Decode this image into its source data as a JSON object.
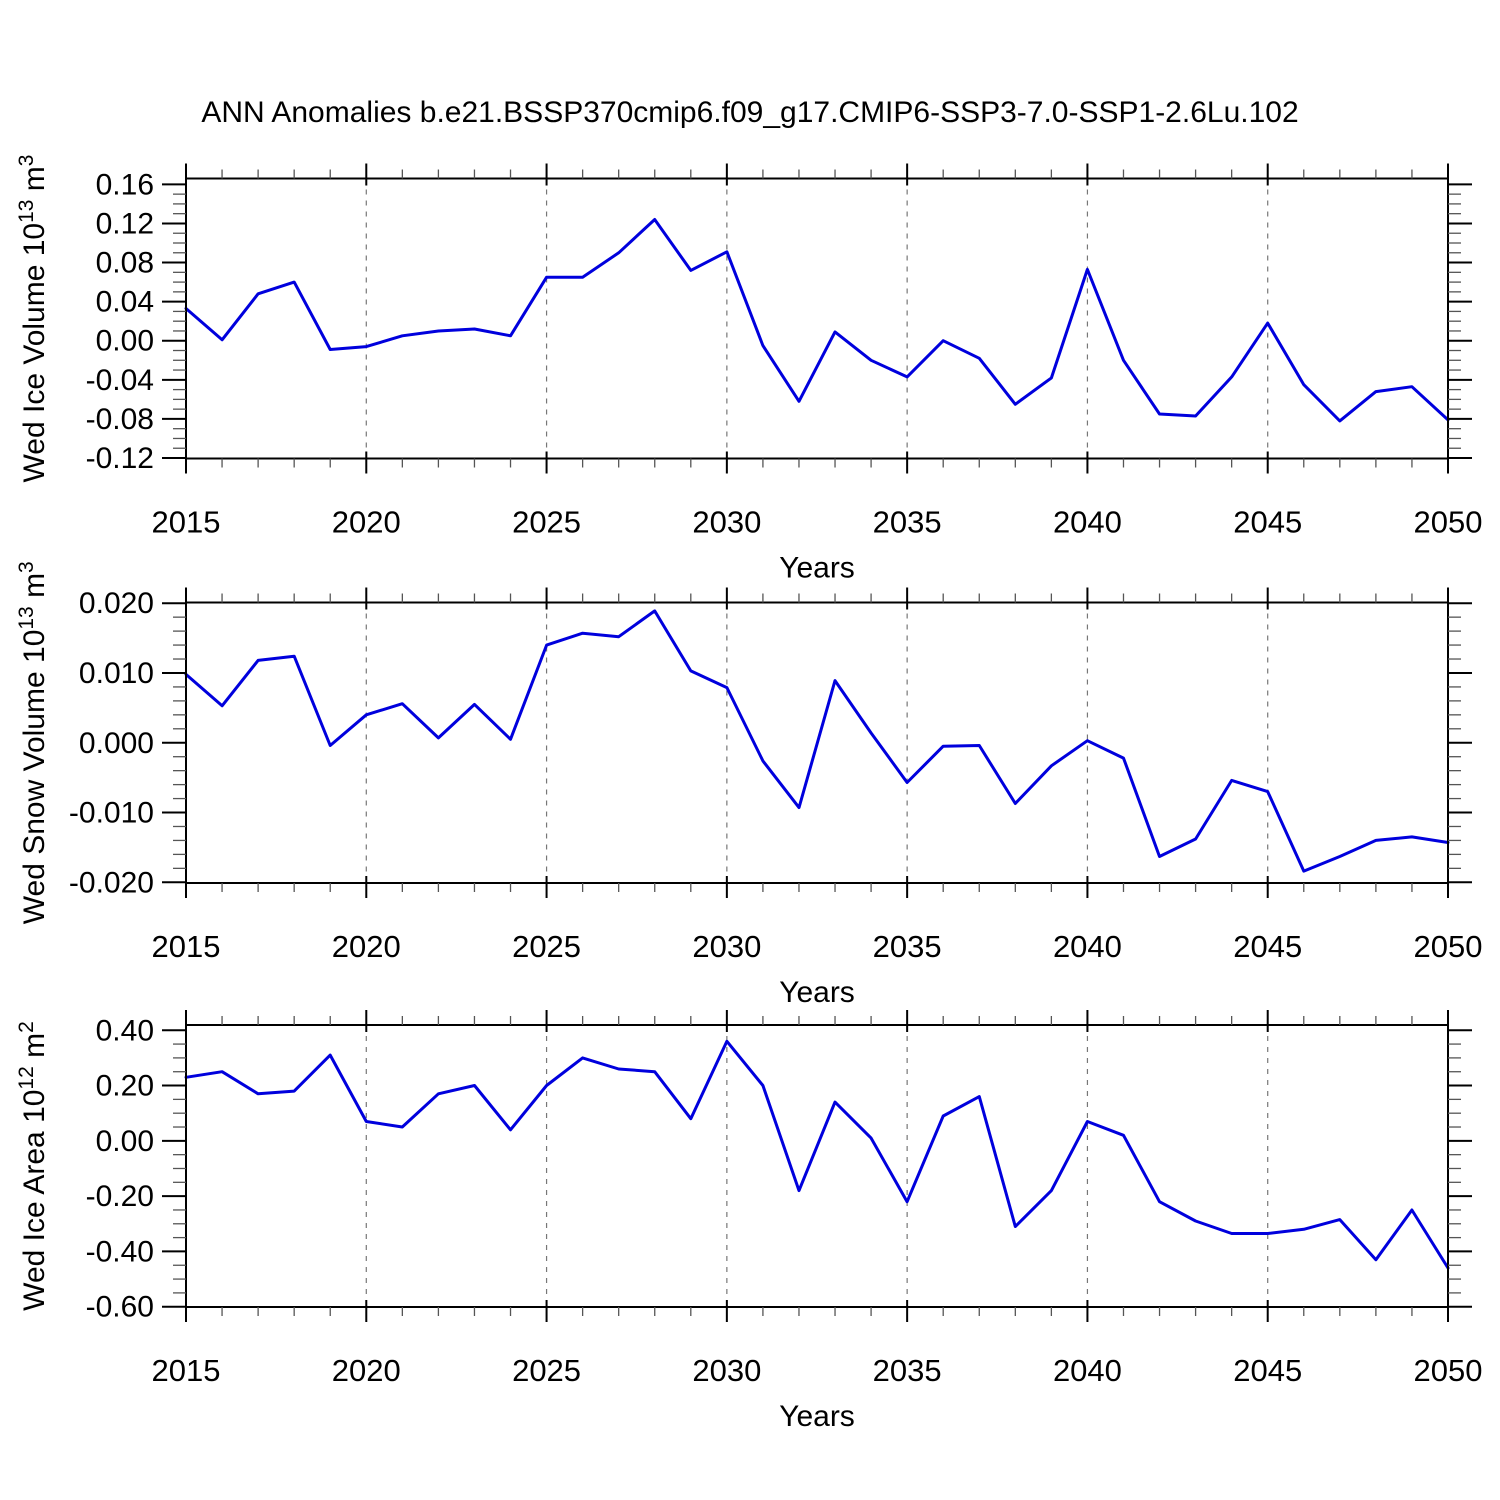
{
  "title": "ANN Anomalies b.e21.BSSP370cmip6.f09_g17.CMIP6-SSP3-7.0-SSP1-2.6Lu.102",
  "colors": {
    "line": "#0000dd",
    "grid": "#777777",
    "axis": "#000000",
    "minor_tick": "#555555",
    "background": "#ffffff"
  },
  "x_axis": {
    "label": "Years",
    "range": [
      2015,
      2050
    ],
    "major_ticks": [
      2015,
      2020,
      2025,
      2030,
      2035,
      2040,
      2045,
      2050
    ],
    "major_tick_labels": [
      "2015",
      "2020",
      "2025",
      "2030",
      "2035",
      "2040",
      "2045",
      "2050"
    ],
    "minor_step": 1,
    "grid_years": [
      2020,
      2025,
      2030,
      2035,
      2040,
      2045
    ],
    "grid_style": "dashed"
  },
  "chart_data": [
    {
      "type": "line",
      "ylabel_segments": [
        {
          "t": "Wed Ice Volume 10"
        },
        {
          "t": "13",
          "sup": true
        },
        {
          "t": " m"
        },
        {
          "t": "3",
          "sup": true
        }
      ],
      "ylabel_plain": "Wed Ice Volume 10^13 m^3",
      "xlabel": "Years",
      "x": [
        2015,
        2016,
        2017,
        2018,
        2019,
        2020,
        2021,
        2022,
        2023,
        2024,
        2025,
        2026,
        2027,
        2028,
        2029,
        2030,
        2031,
        2032,
        2033,
        2034,
        2035,
        2036,
        2037,
        2038,
        2039,
        2040,
        2041,
        2042,
        2043,
        2044,
        2045,
        2046,
        2047,
        2048,
        2049,
        2050
      ],
      "values": [
        0.033,
        0.001,
        0.048,
        0.06,
        -0.009,
        -0.006,
        0.005,
        0.01,
        0.012,
        0.005,
        0.065,
        0.065,
        0.09,
        0.124,
        0.072,
        0.091,
        -0.005,
        -0.062,
        0.009,
        -0.02,
        -0.037,
        0.0,
        -0.018,
        -0.065,
        -0.038,
        0.073,
        -0.02,
        -0.075,
        -0.077,
        -0.037,
        0.018,
        -0.045,
        -0.082,
        -0.052,
        -0.047,
        -0.081
      ],
      "ylim": [
        -0.1205,
        0.166
      ],
      "yticks": [
        0.16,
        0.12,
        0.08,
        0.04,
        0.0,
        -0.04,
        -0.08,
        -0.12
      ],
      "ytick_labels": [
        "0.16",
        "0.12",
        "0.08",
        "0.04",
        "0.00",
        "-0.04",
        "-0.08",
        "-0.12"
      ],
      "y_minor_step": 0.01,
      "grid": true,
      "legend": "none"
    },
    {
      "type": "line",
      "ylabel_segments": [
        {
          "t": "Wed Snow Volume 10"
        },
        {
          "t": "13",
          "sup": true
        },
        {
          "t": " m"
        },
        {
          "t": "3",
          "sup": true
        }
      ],
      "ylabel_plain": "Wed Snow Volume 10^13 m^3",
      "xlabel": "Years",
      "x": [
        2015,
        2016,
        2017,
        2018,
        2019,
        2020,
        2021,
        2022,
        2023,
        2024,
        2025,
        2026,
        2027,
        2028,
        2029,
        2030,
        2031,
        2032,
        2033,
        2034,
        2035,
        2036,
        2037,
        2038,
        2039,
        2040,
        2041,
        2042,
        2043,
        2044,
        2045,
        2046,
        2047,
        2048,
        2049,
        2050
      ],
      "values": [
        0.0098,
        0.0053,
        0.0118,
        0.0124,
        -0.0004,
        0.004,
        0.0056,
        0.0007,
        0.0055,
        0.0005,
        0.014,
        0.0157,
        0.0152,
        0.0189,
        0.0103,
        0.0079,
        -0.0026,
        -0.0093,
        0.0089,
        0.0014,
        -0.0057,
        -0.0005,
        -0.0004,
        -0.0087,
        -0.0033,
        0.0003,
        -0.0022,
        -0.0163,
        -0.0138,
        -0.0054,
        -0.007,
        -0.0184,
        -0.0163,
        -0.014,
        -0.0135,
        -0.0143
      ],
      "ylim": [
        -0.0201,
        0.0201
      ],
      "yticks": [
        0.02,
        0.01,
        0.0,
        -0.01,
        -0.02
      ],
      "ytick_labels": [
        "0.020",
        "0.010",
        "0.000",
        "-0.010",
        "-0.020"
      ],
      "y_minor_step": 0.002,
      "grid": true,
      "legend": "none"
    },
    {
      "type": "line",
      "ylabel_segments": [
        {
          "t": "Wed Ice Area 10"
        },
        {
          "t": "12",
          "sup": true
        },
        {
          "t": " m"
        },
        {
          "t": "2",
          "sup": true
        }
      ],
      "ylabel_plain": "Wed Ice Area 10^12 m^2",
      "xlabel": "Years",
      "x": [
        2015,
        2016,
        2017,
        2018,
        2019,
        2020,
        2021,
        2022,
        2023,
        2024,
        2025,
        2026,
        2027,
        2028,
        2029,
        2030,
        2031,
        2032,
        2033,
        2034,
        2035,
        2036,
        2037,
        2038,
        2039,
        2040,
        2041,
        2042,
        2043,
        2044,
        2045,
        2046,
        2047,
        2048,
        2049,
        2050
      ],
      "values": [
        0.23,
        0.25,
        0.17,
        0.18,
        0.31,
        0.07,
        0.05,
        0.17,
        0.2,
        0.04,
        0.2,
        0.3,
        0.26,
        0.25,
        0.08,
        0.36,
        0.2,
        -0.18,
        0.14,
        0.01,
        -0.22,
        0.09,
        0.16,
        -0.31,
        -0.18,
        0.07,
        0.02,
        -0.22,
        -0.29,
        -0.335,
        -0.335,
        -0.32,
        -0.285,
        -0.43,
        -0.25,
        -0.46
      ],
      "ylim": [
        -0.601,
        0.419
      ],
      "yticks": [
        0.4,
        0.2,
        0.0,
        -0.2,
        -0.4,
        -0.6
      ],
      "ytick_labels": [
        "0.40",
        "0.20",
        "0.00",
        "-0.20",
        "-0.40",
        "-0.60"
      ],
      "y_minor_step": 0.05,
      "grid": true,
      "legend": "none"
    }
  ]
}
